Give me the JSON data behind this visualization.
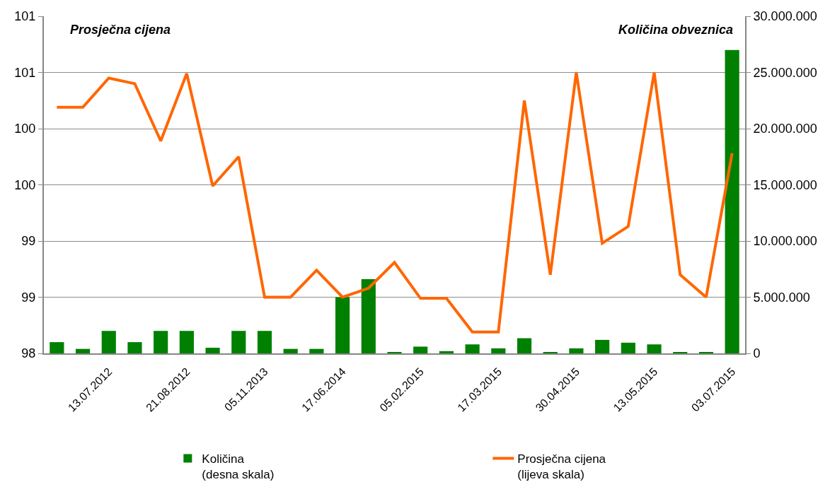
{
  "chart_data": {
    "type": "bar",
    "categories": [
      null,
      null,
      "13.07.2012",
      null,
      null,
      "21.08.2012",
      null,
      null,
      "05.11.2013",
      null,
      null,
      "17.06.2014",
      null,
      null,
      "05.02.2015",
      null,
      null,
      "17.03.2015",
      null,
      null,
      "30.04.2015",
      null,
      null,
      "13.05.2015",
      null,
      null,
      "03.07.2015"
    ],
    "series": [
      {
        "name": "Količina\n(desna skala)",
        "axis": "y2",
        "color": "#008000",
        "values": [
          1000000,
          400000,
          2000000,
          1000000,
          2000000,
          2000000,
          500000,
          2000000,
          2000000,
          400000,
          400000,
          5000000,
          6600000,
          100000,
          600000,
          200000,
          800000,
          450000,
          1350000,
          100000,
          450000,
          1200000,
          950000,
          800000,
          100000,
          100000,
          27000000
        ]
      },
      {
        "name": "Prosječna cijena\n(lijeva skala)",
        "type": "line",
        "color": "#ff6600",
        "values": [
          100.19,
          100.19,
          100.45,
          100.4,
          99.89,
          100.49,
          99.49,
          99.75,
          98.5,
          98.5,
          98.74,
          98.5,
          98.58,
          98.81,
          98.49,
          98.49,
          98.19,
          98.19,
          100.25,
          98.7,
          100.5,
          98.98,
          99.13,
          100.5,
          98.7,
          98.5,
          99.78
        ]
      }
    ],
    "ylim": [
      98,
      101
    ],
    "yticks": [
      98,
      {
        "value": 98.5,
        "label": "99"
      },
      99,
      {
        "value": 99.5,
        "label": "100"
      },
      100,
      {
        "value": 100.5,
        "label": "101"
      },
      101
    ],
    "y2lim": [
      0,
      30000000
    ],
    "y2ticks": [
      0,
      {
        "value": 5000000,
        "label": "5.000.000"
      },
      {
        "value": 10000000,
        "label": "10.000.000"
      },
      {
        "value": 15000000,
        "label": "15.000.000"
      },
      {
        "value": 20000000,
        "label": "20.000.000"
      },
      {
        "value": 25000000,
        "label": "25.000.000"
      },
      {
        "value": 30000000,
        "label": "30.000.000"
      }
    ],
    "annotations": [
      "Prosječna cijena",
      "Količina obveznica"
    ],
    "grid": "y",
    "legend": "bottom"
  }
}
